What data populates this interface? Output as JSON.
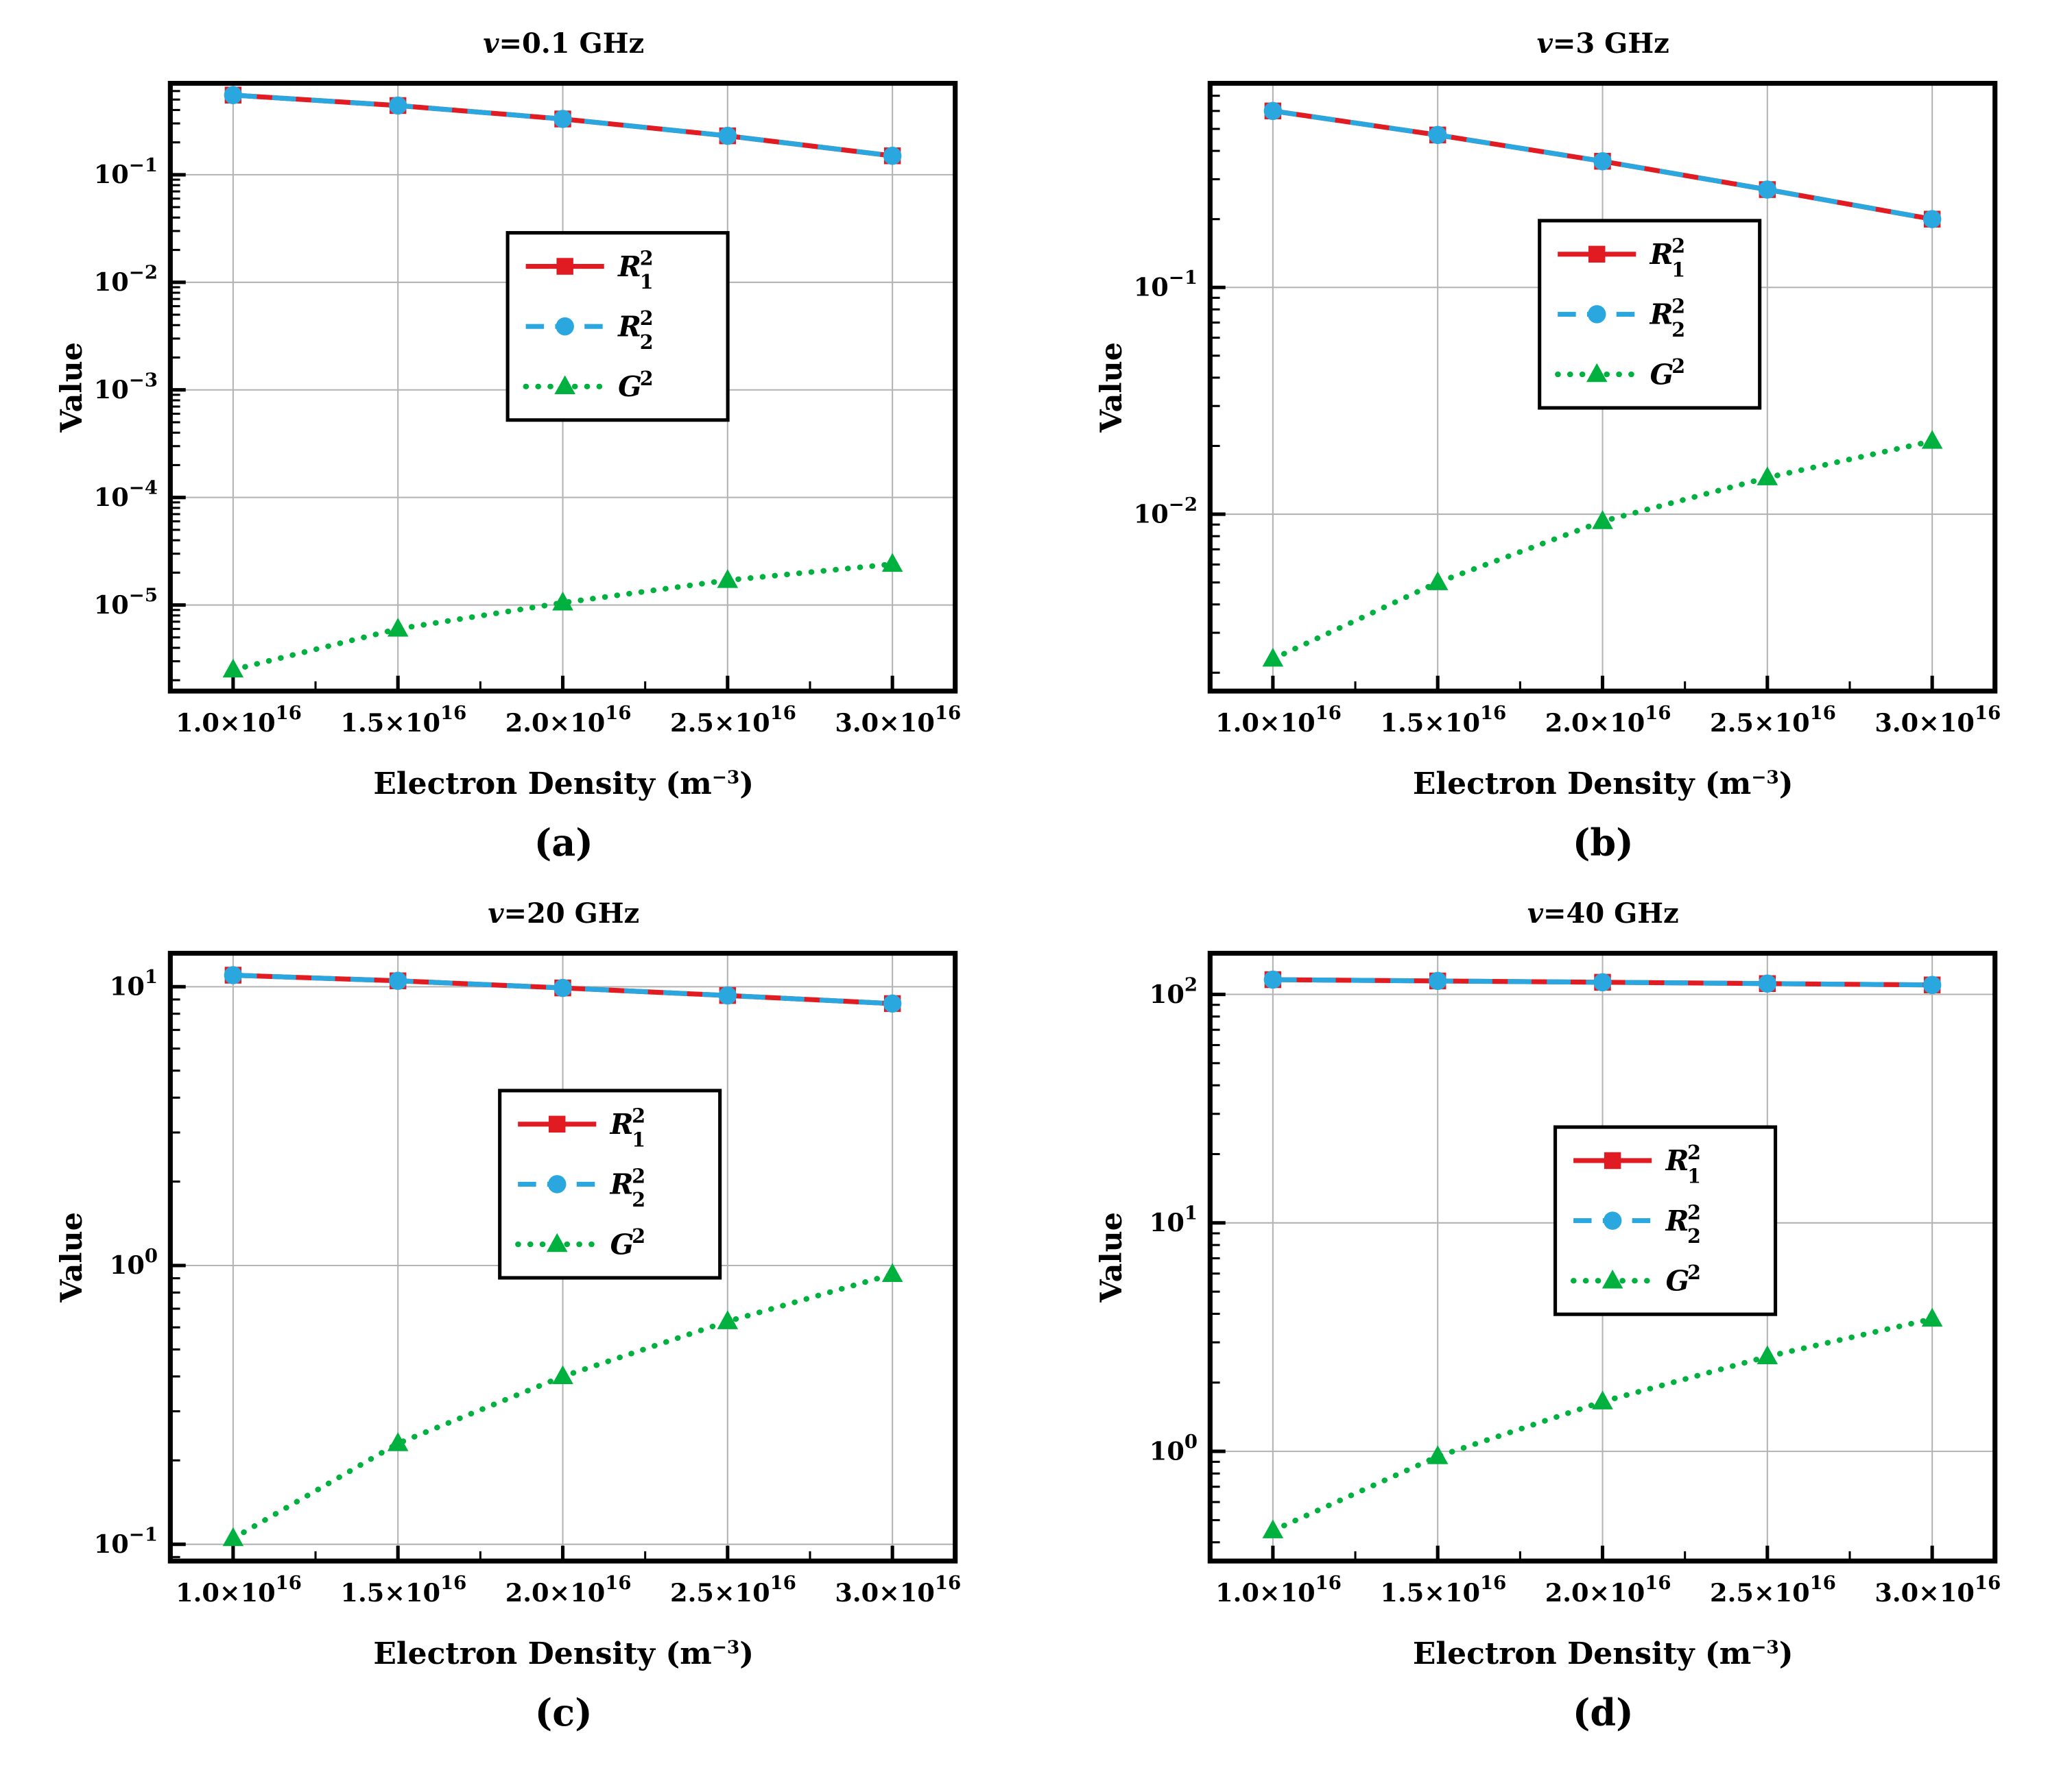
{
  "ui": {
    "colors": {
      "grid": "#b3b3b3",
      "frame": "#000000",
      "background": "#ffffff",
      "red": "#e11b22",
      "blue": "#2aa7df",
      "green": "#00b140"
    }
  },
  "axes": {
    "ylabel": "Value",
    "y_tick_base": "10",
    "xlabel": {
      "pre": "Electron Density (m",
      "sup": "−3",
      "post": ")"
    },
    "x_tick_mantissas": [
      "1.0",
      "1.5",
      "2.0",
      "2.5",
      "3.0"
    ],
    "x_tick_times": "×10",
    "x_tick_exp": "16",
    "x_pad": 0.08
  },
  "chart_data": [
    {
      "type": "line",
      "title": {
        "var": "v",
        "rest": "=0.1 GHz"
      },
      "caption": "(a)",
      "ylabel": "Value",
      "x": [
        1e+16,
        1.5e+16,
        2e+16,
        2.5e+16,
        3e+16
      ],
      "log_ylim": [
        -5.8,
        -0.15
      ],
      "y_tick_exponents": [
        -1,
        -2,
        -3,
        -4,
        -5
      ],
      "legend_center": [
        0.57,
        0.4
      ],
      "series": [
        {
          "key": "R1",
          "label": {
            "letter": "R",
            "sub": "1",
            "sup": "2"
          },
          "color": "#e11b22",
          "line": "solid",
          "marker": "square",
          "values": [
            0.55,
            0.44,
            0.33,
            0.23,
            0.15
          ]
        },
        {
          "key": "R2",
          "label": {
            "letter": "R",
            "sub": "2",
            "sup": "2"
          },
          "color": "#2aa7df",
          "line": "dashed",
          "marker": "circle",
          "values": [
            0.55,
            0.44,
            0.33,
            0.23,
            0.15
          ]
        },
        {
          "key": "G",
          "label": {
            "letter": "G",
            "sub": "",
            "sup": "2"
          },
          "color": "#00b140",
          "line": "dotted",
          "marker": "triangle",
          "values": [
            2.5e-06,
            6e-06,
            1.05e-05,
            1.7e-05,
            2.4e-05
          ]
        }
      ]
    },
    {
      "type": "line",
      "title": {
        "var": "v",
        "rest": "=3 GHz"
      },
      "caption": "(b)",
      "ylabel": "Value",
      "x": [
        1e+16,
        1.5e+16,
        2e+16,
        2.5e+16,
        3e+16
      ],
      "log_ylim": [
        -2.78,
        -0.1
      ],
      "y_tick_exponents": [
        -1,
        -2
      ],
      "legend_center": [
        0.56,
        0.38
      ],
      "series": [
        {
          "key": "R1",
          "label": {
            "letter": "R",
            "sub": "1",
            "sup": "2"
          },
          "color": "#e11b22",
          "line": "solid",
          "marker": "square",
          "values": [
            0.6,
            0.47,
            0.36,
            0.27,
            0.2
          ]
        },
        {
          "key": "R2",
          "label": {
            "letter": "R",
            "sub": "2",
            "sup": "2"
          },
          "color": "#2aa7df",
          "line": "dashed",
          "marker": "circle",
          "values": [
            0.6,
            0.47,
            0.36,
            0.27,
            0.2
          ]
        },
        {
          "key": "G",
          "label": {
            "letter": "G",
            "sub": "",
            "sup": "2"
          },
          "color": "#00b140",
          "line": "dotted",
          "marker": "triangle",
          "values": [
            0.0023,
            0.005,
            0.0093,
            0.0145,
            0.021
          ]
        }
      ]
    },
    {
      "type": "line",
      "title": {
        "var": "v",
        "rest": "=20 GHz"
      },
      "caption": "(c)",
      "ylabel": "Value",
      "x": [
        1e+16,
        1.5e+16,
        2e+16,
        2.5e+16,
        3e+16
      ],
      "log_ylim": [
        -1.06,
        1.12
      ],
      "y_tick_exponents": [
        1,
        0,
        -1
      ],
      "legend_center": [
        0.56,
        0.38
      ],
      "series": [
        {
          "key": "R1",
          "label": {
            "letter": "R",
            "sub": "1",
            "sup": "2"
          },
          "color": "#e11b22",
          "line": "solid",
          "marker": "square",
          "values": [
            11.0,
            10.5,
            9.9,
            9.3,
            8.7
          ]
        },
        {
          "key": "R2",
          "label": {
            "letter": "R",
            "sub": "2",
            "sup": "2"
          },
          "color": "#2aa7df",
          "line": "dashed",
          "marker": "circle",
          "values": [
            11.0,
            10.5,
            9.9,
            9.3,
            8.7
          ]
        },
        {
          "key": "G",
          "label": {
            "letter": "G",
            "sub": "",
            "sup": "2"
          },
          "color": "#00b140",
          "line": "dotted",
          "marker": "triangle",
          "values": [
            0.105,
            0.23,
            0.4,
            0.63,
            0.93
          ]
        }
      ]
    },
    {
      "type": "line",
      "title": {
        "var": "v",
        "rest": "=40 GHz"
      },
      "caption": "(d)",
      "ylabel": "Value",
      "x": [
        1e+16,
        1.5e+16,
        2e+16,
        2.5e+16,
        3e+16
      ],
      "log_ylim": [
        -0.48,
        2.18
      ],
      "y_tick_exponents": [
        2,
        1,
        0
      ],
      "legend_center": [
        0.58,
        0.44
      ],
      "series": [
        {
          "key": "R1",
          "label": {
            "letter": "R",
            "sub": "1",
            "sup": "2"
          },
          "color": "#e11b22",
          "line": "solid",
          "marker": "square",
          "values": [
            116,
            114.5,
            113,
            111.5,
            110
          ]
        },
        {
          "key": "R2",
          "label": {
            "letter": "R",
            "sub": "2",
            "sup": "2"
          },
          "color": "#2aa7df",
          "line": "dashed",
          "marker": "circle",
          "values": [
            116,
            114.5,
            113,
            111.5,
            110
          ]
        },
        {
          "key": "G",
          "label": {
            "letter": "G",
            "sub": "",
            "sup": "2"
          },
          "color": "#00b140",
          "line": "dotted",
          "marker": "triangle",
          "values": [
            0.45,
            0.95,
            1.65,
            2.6,
            3.8
          ]
        }
      ]
    }
  ]
}
